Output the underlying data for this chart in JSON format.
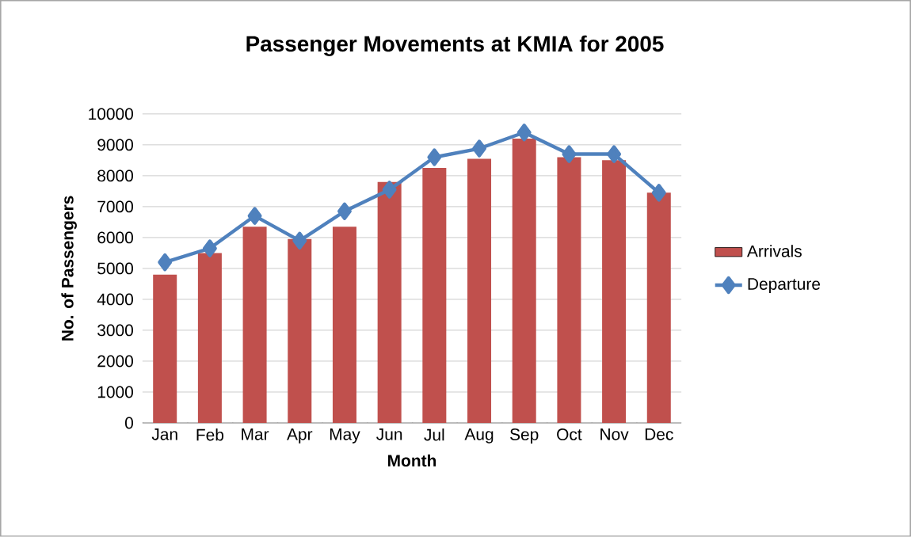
{
  "chart_data": {
    "type": "bar",
    "title": "Passenger Movements at KMIA for 2005",
    "xlabel": "Month",
    "ylabel": "No. of Passengers",
    "categories": [
      "Jan",
      "Feb",
      "Mar",
      "Apr",
      "May",
      "Jun",
      "Jul",
      "Aug",
      "Sep",
      "Oct",
      "Nov",
      "Dec"
    ],
    "series": [
      {
        "name": "Arrivals",
        "color": "#c0504d",
        "values": [
          4800,
          5500,
          6350,
          5950,
          6350,
          7800,
          8250,
          8550,
          9200,
          8600,
          8500,
          7450
        ]
      },
      {
        "name": "Departure",
        "type": "line",
        "color": "#4f81bd",
        "marker": "diamond",
        "values": [
          5200,
          5650,
          6700,
          5900,
          6850,
          7550,
          8600,
          8880,
          9400,
          8700,
          8700,
          7450
        ]
      }
    ],
    "ylim": [
      0,
      10000
    ],
    "yticks": [
      0,
      1000,
      2000,
      3000,
      4000,
      5000,
      6000,
      7000,
      8000,
      9000,
      10000
    ],
    "grid": "y",
    "legend": "right"
  }
}
